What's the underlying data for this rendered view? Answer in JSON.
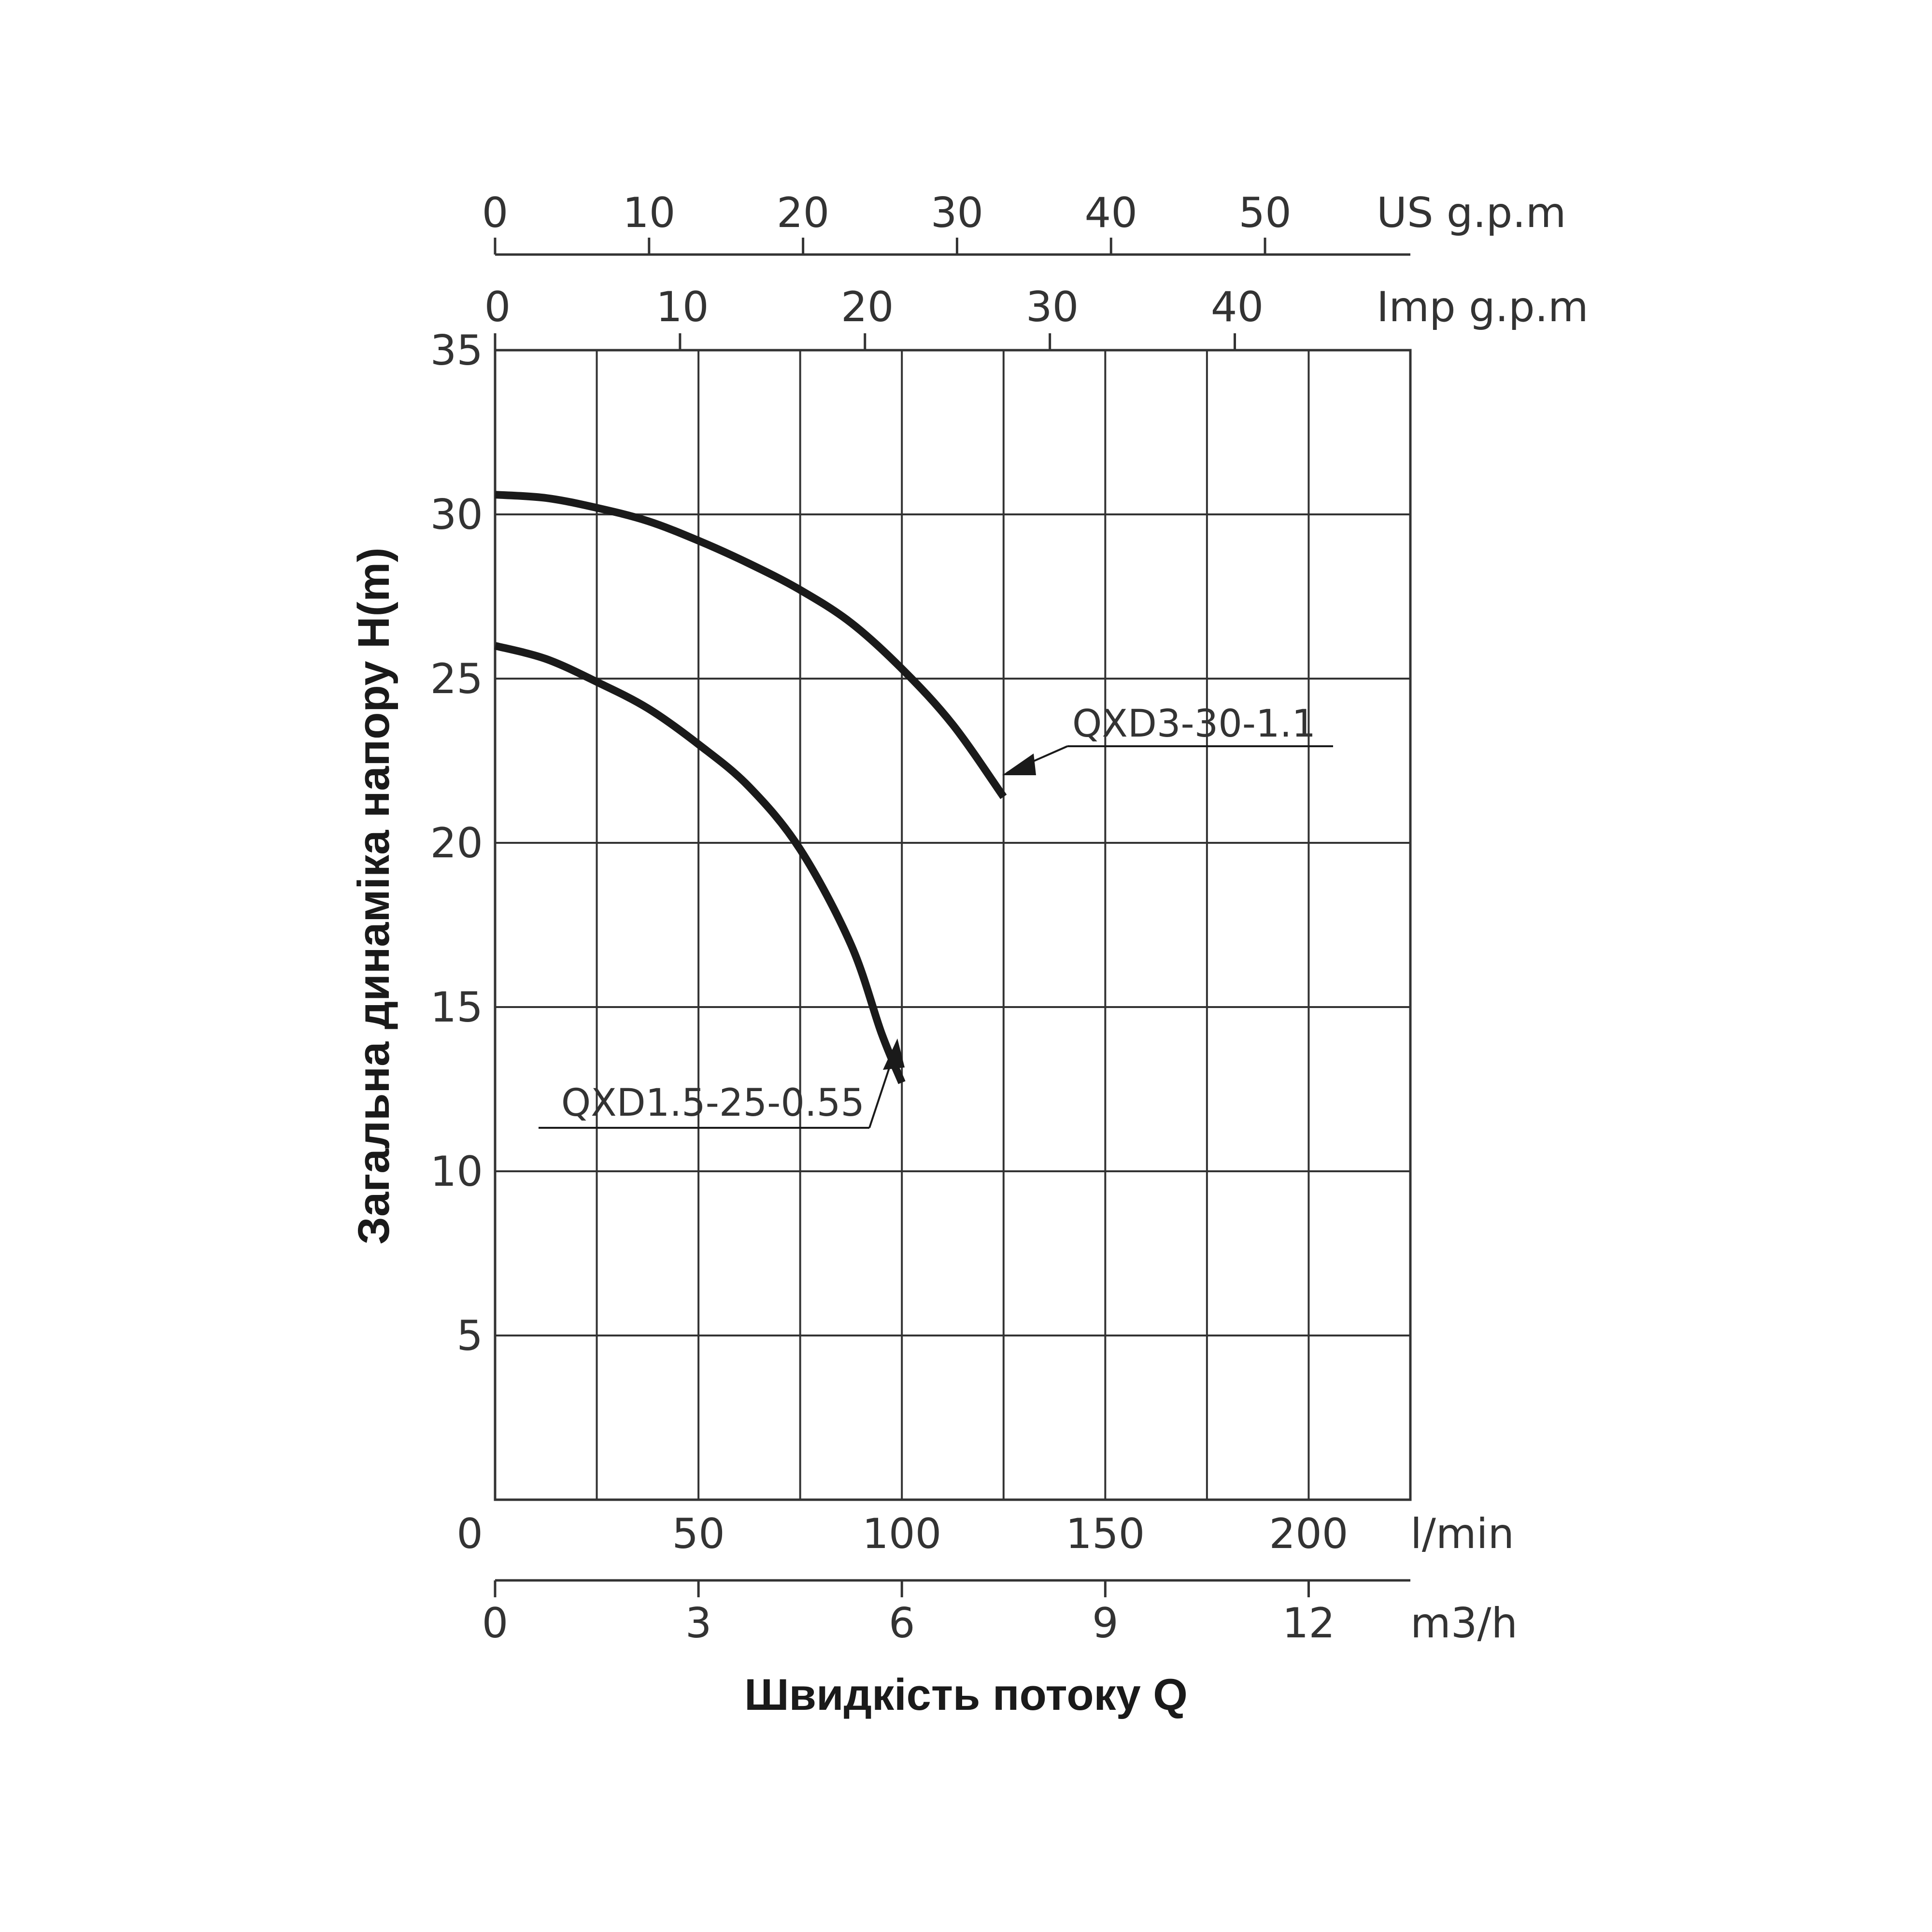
{
  "chart_data": {
    "type": "line",
    "title": "",
    "xlabel": "Швидкість потоку Q",
    "ylabel": "Загальна динаміка напору H(m)",
    "grid": true,
    "x_unit": "l/min",
    "xlim": [
      0,
      225
    ],
    "ylim": [
      0,
      35
    ],
    "y_ticks": [
      "35",
      "30",
      "25",
      "20",
      "15",
      "10",
      "5"
    ],
    "y_tick_values": [
      35,
      30,
      25,
      20,
      15,
      10,
      5
    ],
    "x_gridlines": [
      25,
      50,
      75,
      100,
      125,
      150,
      175,
      200,
      225
    ],
    "axes": {
      "lmin": {
        "unit": "l/min",
        "ticks": [
          "0",
          "50",
          "100",
          "150",
          "200"
        ],
        "values": [
          0,
          50,
          100,
          150,
          200
        ]
      },
      "m3h": {
        "unit": "m3/h",
        "ticks": [
          "0",
          "3",
          "6",
          "9",
          "12"
        ],
        "values": [
          0,
          3,
          6,
          9,
          12
        ]
      },
      "us_gpm": {
        "unit": "US g.p.m",
        "ticks": [
          "0",
          "10",
          "20",
          "30",
          "40",
          "50"
        ],
        "values": [
          0,
          10,
          20,
          30,
          40,
          50
        ]
      },
      "imp_gpm": {
        "unit": "Imp g.p.m",
        "ticks": [
          "0",
          "10",
          "20",
          "30",
          "40"
        ],
        "values": [
          0,
          10,
          20,
          30,
          40
        ]
      }
    },
    "series": [
      {
        "name": "QXD3-30-1.1",
        "x": [
          0,
          12.5,
          25,
          37.5,
          50,
          62.5,
          75,
          87.5,
          100,
          112.5,
          125
        ],
        "y": [
          30.6,
          30.5,
          30.2,
          29.8,
          29.2,
          28.5,
          27.7,
          26.7,
          25.3,
          23.6,
          21.4
        ]
      },
      {
        "name": "QXD1.5-25-0.55",
        "x": [
          0,
          12.5,
          25,
          37.5,
          50,
          62.5,
          75,
          87.5,
          95,
          100
        ],
        "y": [
          26.0,
          25.6,
          24.9,
          24.1,
          23.0,
          21.7,
          19.8,
          16.9,
          14.2,
          12.7
        ]
      }
    ],
    "annotations": [
      {
        "series": "QXD3-30-1.1",
        "text": "QXD3-30-1.1"
      },
      {
        "series": "QXD1.5-25-0.55",
        "text": "QXD1.5-25-0.55"
      }
    ],
    "line_color": "#1a1a1a",
    "grid_color": "#333333"
  }
}
